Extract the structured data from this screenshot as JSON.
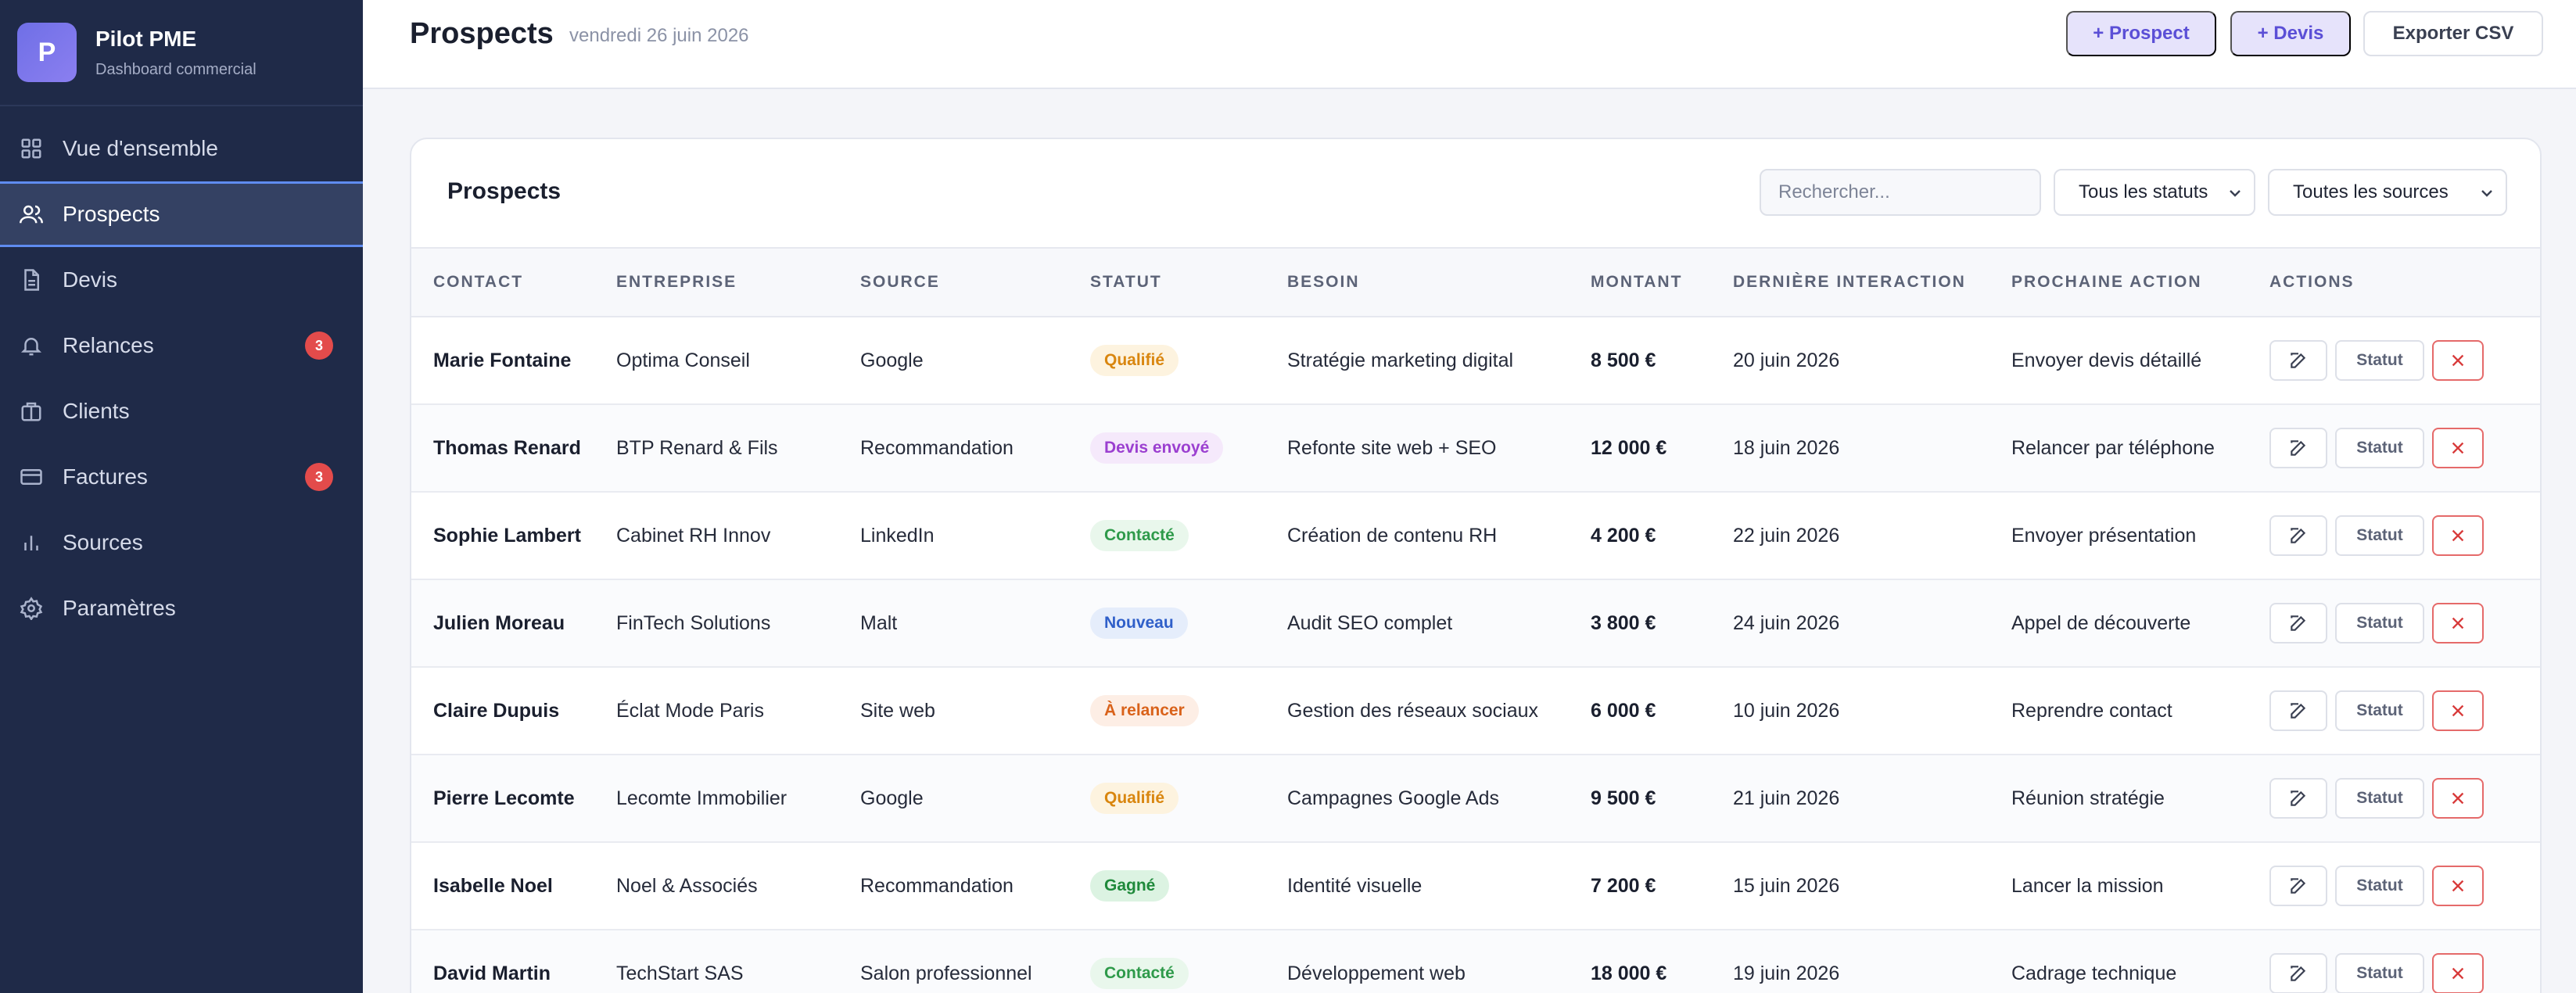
{
  "app": {
    "logo_letter": "P",
    "name": "Pilot PME",
    "subtitle": "Dashboard commercial"
  },
  "sidebar": {
    "items": [
      {
        "label": "Vue d'ensemble",
        "icon": "grid-icon",
        "active": false,
        "badge": null
      },
      {
        "label": "Prospects",
        "icon": "users-icon",
        "active": true,
        "badge": null
      },
      {
        "label": "Devis",
        "icon": "document-icon",
        "active": false,
        "badge": null
      },
      {
        "label": "Relances",
        "icon": "bell-icon",
        "active": false,
        "badge": "3"
      },
      {
        "label": "Clients",
        "icon": "briefcase-icon",
        "active": false,
        "badge": null
      },
      {
        "label": "Factures",
        "icon": "credit-card-icon",
        "active": false,
        "badge": "3"
      },
      {
        "label": "Sources",
        "icon": "bar-chart-icon",
        "active": false,
        "badge": null
      },
      {
        "label": "Paramètres",
        "icon": "gear-icon",
        "active": false,
        "badge": null
      }
    ]
  },
  "header": {
    "title": "Prospects",
    "date": "vendredi 26 juin 2026",
    "add_prospect_label": "+ Prospect",
    "add_devis_label": "+ Devis",
    "export_label": "Exporter CSV"
  },
  "card": {
    "title": "Prospects",
    "search_placeholder": "Rechercher...",
    "status_filter": "Tous les statuts",
    "source_filter": "Toutes les sources"
  },
  "table": {
    "columns": [
      "CONTACT",
      "ENTREPRISE",
      "SOURCE",
      "STATUT",
      "BESOIN",
      "MONTANT",
      "DERNIÈRE INTERACTION",
      "PROCHAINE ACTION",
      "ACTIONS"
    ],
    "status_button_label": "Statut",
    "rows": [
      {
        "contact": "Marie Fontaine",
        "company": "Optima Conseil",
        "source": "Google",
        "status": "Qualifié",
        "status_kind": "qualified",
        "need": "Stratégie marketing digital",
        "amount": "8 500 €",
        "last": "20 juin 2026",
        "next": "Envoyer devis détaillé"
      },
      {
        "contact": "Thomas Renard",
        "company": "BTP Renard & Fils",
        "source": "Recommandation",
        "status": "Devis envoyé",
        "status_kind": "quote",
        "need": "Refonte site web + SEO",
        "amount": "12 000 €",
        "last": "18 juin 2026",
        "next": "Relancer par téléphone"
      },
      {
        "contact": "Sophie Lambert",
        "company": "Cabinet RH Innov",
        "source": "LinkedIn",
        "status": "Contacté",
        "status_kind": "contacted",
        "need": "Création de contenu RH",
        "amount": "4 200 €",
        "last": "22 juin 2026",
        "next": "Envoyer présentation"
      },
      {
        "contact": "Julien Moreau",
        "company": "FinTech Solutions",
        "source": "Malt",
        "status": "Nouveau",
        "status_kind": "new",
        "need": "Audit SEO complet",
        "amount": "3 800 €",
        "last": "24 juin 2026",
        "next": "Appel de découverte"
      },
      {
        "contact": "Claire Dupuis",
        "company": "Éclat Mode Paris",
        "source": "Site web",
        "status": "À relancer",
        "status_kind": "followup",
        "need": "Gestion des réseaux sociaux",
        "amount": "6 000 €",
        "last": "10 juin 2026",
        "next": "Reprendre contact"
      },
      {
        "contact": "Pierre Lecomte",
        "company": "Lecomte Immobilier",
        "source": "Google",
        "status": "Qualifié",
        "status_kind": "qualified",
        "need": "Campagnes Google Ads",
        "amount": "9 500 €",
        "last": "21 juin 2026",
        "next": "Réunion stratégie"
      },
      {
        "contact": "Isabelle Noel",
        "company": "Noel & Associés",
        "source": "Recommandation",
        "status": "Gagné",
        "status_kind": "won",
        "need": "Identité visuelle",
        "amount": "7 200 €",
        "last": "15 juin 2026",
        "next": "Lancer la mission"
      },
      {
        "contact": "David Martin",
        "company": "TechStart SAS",
        "source": "Salon professionnel",
        "status": "Contacté",
        "status_kind": "contacted",
        "need": "Développement web",
        "amount": "18 000 €",
        "last": "19 juin 2026",
        "next": "Cadrage technique"
      }
    ]
  },
  "status_colors": {
    "qualified": {
      "bg": "#fdf3df",
      "fg": "#d9860f"
    },
    "quote": {
      "bg": "#f5e9fb",
      "fg": "#9b3fd0"
    },
    "contacted": {
      "bg": "#e9f7ec",
      "fg": "#2e9a4a"
    },
    "new": {
      "bg": "#e5edfb",
      "fg": "#2f5fc9"
    },
    "followup": {
      "bg": "#fdeee5",
      "fg": "#d9621a"
    },
    "won": {
      "bg": "#dcf3e2",
      "fg": "#1f8a3b"
    }
  }
}
